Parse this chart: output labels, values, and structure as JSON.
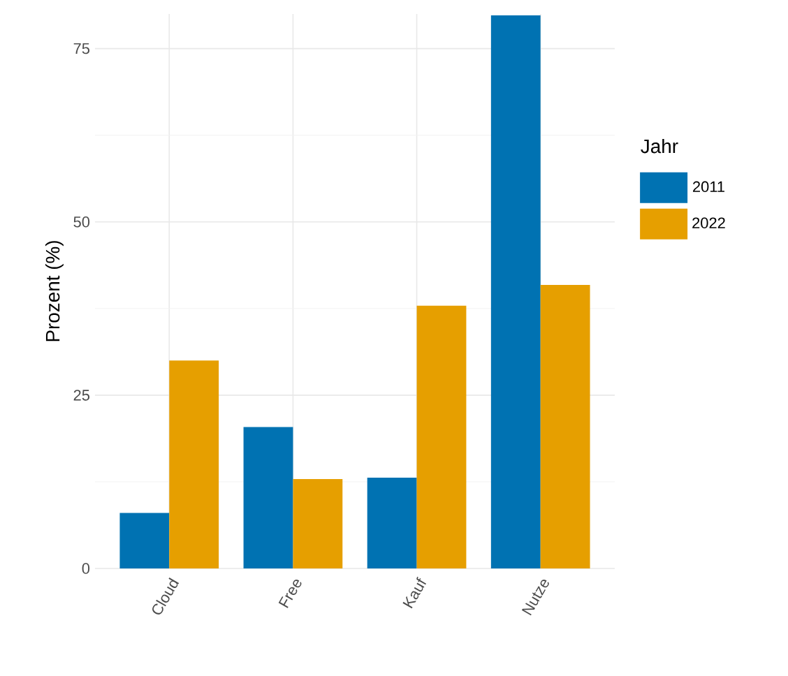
{
  "chart_data": {
    "type": "bar",
    "ylabel": "Prozent (%)",
    "legend_title": "Jahr",
    "categories": [
      "Cloud",
      "Free",
      "Kauf",
      "Nutze"
    ],
    "series": [
      {
        "name": "2011",
        "color": "#0072b2",
        "values": [
          8,
          20.4,
          13.1,
          79.8
        ]
      },
      {
        "name": "2022",
        "color": "#e69f00",
        "values": [
          30,
          12.9,
          37.9,
          40.9
        ]
      }
    ],
    "ylim": [
      0,
      80
    ],
    "yticks": [
      0,
      25,
      50,
      75
    ],
    "grid": true,
    "legend": "right"
  }
}
